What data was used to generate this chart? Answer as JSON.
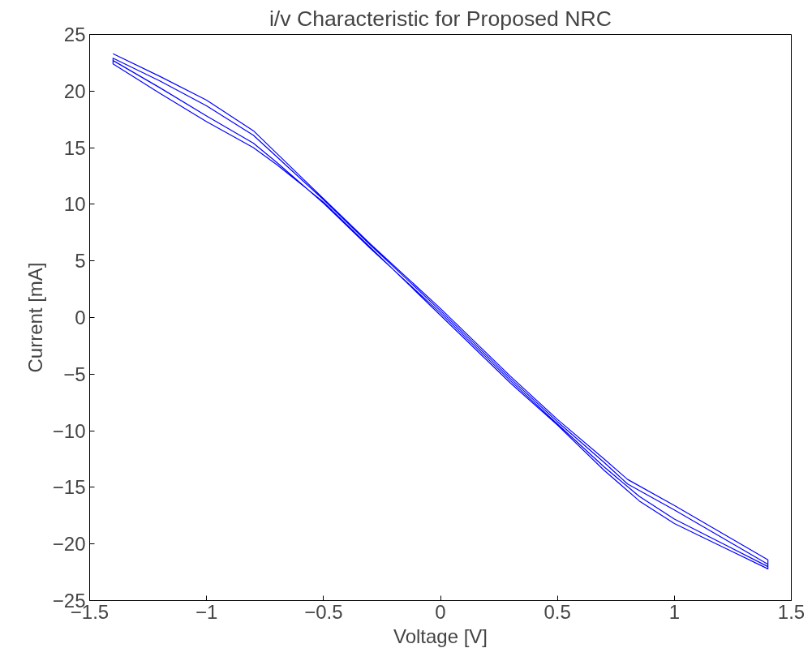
{
  "chart_data": {
    "type": "line",
    "title": "i/v Characteristic for Proposed NRC",
    "xlabel": "Voltage [V]",
    "ylabel": "Current [mA]",
    "xlim": [
      -1.5,
      1.5
    ],
    "xticks": [
      -1.5,
      -1,
      -0.5,
      0,
      0.5,
      1,
      1.5
    ],
    "ylim": [
      -25,
      25
    ],
    "yticks": [
      -25,
      -20,
      -15,
      -10,
      -5,
      0,
      5,
      10,
      15,
      20,
      25
    ],
    "grid": false,
    "marker": "none",
    "line_style": "solid",
    "series": [
      {
        "color": "#0000ff",
        "x": [
          -1.4,
          -1.2,
          -1,
          -0.8,
          -0.7,
          -0.5,
          -0.3,
          0,
          0.3,
          0.5,
          0.7,
          0.8,
          1,
          1.2,
          1.4,
          1.4,
          1.2,
          1,
          0.85,
          0.7,
          0.5,
          0.3,
          0,
          -0.3,
          -0.5,
          -0.7,
          -0.8,
          -1,
          -1.2,
          -1.4,
          -1.4,
          -1.2,
          -1,
          -0.8,
          -0.7,
          -0.5,
          -0.3,
          0,
          0.3,
          0.5,
          0.7,
          0.8,
          1,
          1.2,
          1.4,
          1.4,
          1.2,
          1,
          0.85,
          0.7,
          0.5,
          0.3,
          0,
          -0.3,
          -0.5,
          -0.7,
          -0.8,
          -1,
          -1.2,
          -1.4
        ],
        "values": [
          23.3,
          21.3,
          19.2,
          16.5,
          14.5,
          10.5,
          6.5,
          0.8,
          -5.2,
          -9,
          -12.5,
          -14.3,
          -16.6,
          -19,
          -21.4,
          -22.2,
          -20.2,
          -18.2,
          -16.2,
          -13.5,
          -9.5,
          -5.8,
          0.2,
          6.2,
          10.2,
          13.5,
          15,
          17.3,
          19.8,
          22.4,
          22.9,
          20.9,
          18.7,
          16.1,
          14.2,
          10.4,
          6.4,
          0.6,
          -5.4,
          -9.2,
          -12.8,
          -14.7,
          -17,
          -19.4,
          -21.8,
          -22,
          -19.9,
          -17.8,
          -15.8,
          -13.2,
          -9.4,
          -5.6,
          0.4,
          6.1,
          10.1,
          13.7,
          15.4,
          17.8,
          20.3,
          22.7
        ]
      }
    ]
  }
}
